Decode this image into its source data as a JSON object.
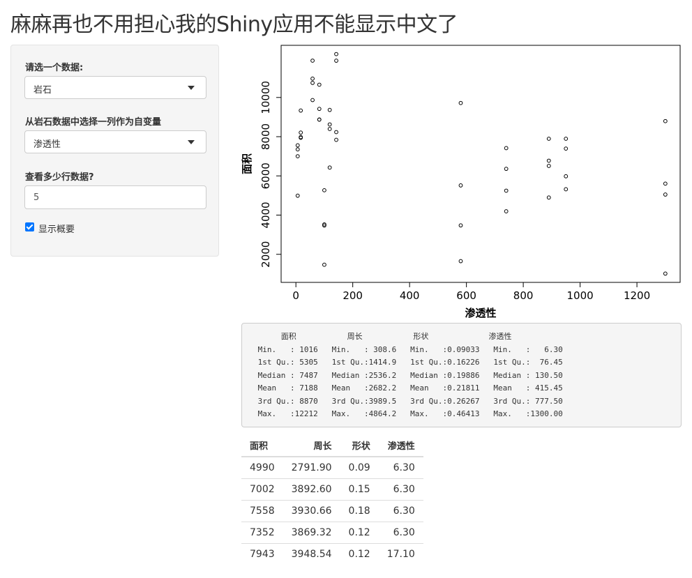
{
  "page_title": "麻麻再也不用担心我的Shiny应用不能显示中文了",
  "sidebar": {
    "dataset_label": "请选一个数据:",
    "dataset_value": "岩石",
    "variable_label": "从岩石数据中选择一列作为自变量",
    "variable_value": "渗透性",
    "rows_label": "查看多少行数据?",
    "rows_value": "5",
    "show_summary_label": "显示概要",
    "show_summary_checked": true
  },
  "chart_data": {
    "type": "scatter",
    "xlabel": "渗透性",
    "ylabel": "面积",
    "xlim": [
      0,
      1300
    ],
    "ylim": [
      1016,
      12212
    ],
    "xticks": [
      0,
      200,
      400,
      600,
      800,
      1000,
      1200
    ],
    "yticks": [
      2000,
      4000,
      6000,
      8000,
      10000
    ],
    "grid": false,
    "points": [
      [
        6.3,
        4990
      ],
      [
        6.3,
        7002
      ],
      [
        6.3,
        7558
      ],
      [
        6.3,
        7352
      ],
      [
        17.1,
        7943
      ],
      [
        17.1,
        7979
      ],
      [
        17.1,
        9333
      ],
      [
        17.1,
        8209
      ],
      [
        119,
        8393
      ],
      [
        119,
        6425
      ],
      [
        119,
        9364
      ],
      [
        119,
        8624
      ],
      [
        82.4,
        10651
      ],
      [
        82.4,
        8868
      ],
      [
        82.4,
        9417
      ],
      [
        82.4,
        8874
      ],
      [
        58.6,
        10962
      ],
      [
        58.6,
        10743
      ],
      [
        58.6,
        11878
      ],
      [
        58.6,
        9867
      ],
      [
        142,
        7838
      ],
      [
        142,
        11876
      ],
      [
        142,
        12212
      ],
      [
        142,
        8233
      ],
      [
        740,
        6360
      ],
      [
        740,
        4193
      ],
      [
        740,
        7416
      ],
      [
        740,
        5246
      ],
      [
        890,
        6509
      ],
      [
        890,
        4895
      ],
      [
        890,
        6775
      ],
      [
        890,
        7894
      ],
      [
        950,
        5980
      ],
      [
        950,
        5318
      ],
      [
        950,
        7392
      ],
      [
        950,
        7894
      ],
      [
        100,
        3469
      ],
      [
        100,
        1468
      ],
      [
        100,
        3524
      ],
      [
        100,
        5267
      ],
      [
        1300,
        5048
      ],
      [
        1300,
        1016
      ],
      [
        1300,
        5605
      ],
      [
        1300,
        8793
      ],
      [
        580,
        3475
      ],
      [
        580,
        1651
      ],
      [
        580,
        5514
      ],
      [
        580,
        9718
      ]
    ]
  },
  "summary": {
    "lines": [
      "      面积           周长           形状             渗透性",
      " Min.   : 1016   Min.   : 308.6   Min.   :0.09033   Min.   :   6.30",
      " 1st Qu.: 5305   1st Qu.:1414.9   1st Qu.:0.16226   1st Qu.:  76.45",
      " Median : 7487   Median :2536.2   Median :0.19886   Median : 130.50",
      " Mean   : 7188   Mean   :2682.2   Mean   :0.21811   Mean   : 415.45",
      " 3rd Qu.: 8870   3rd Qu.:3989.5   3rd Qu.:0.26267   3rd Qu.: 777.50",
      " Max.   :12212   Max.   :4864.2   Max.   :0.46413   Max.   :1300.00"
    ]
  },
  "table": {
    "columns": [
      "面积",
      "周长",
      "形状",
      "渗透性"
    ],
    "rows": [
      [
        "4990",
        "2791.90",
        "0.09",
        "6.30"
      ],
      [
        "7002",
        "3892.60",
        "0.15",
        "6.30"
      ],
      [
        "7558",
        "3930.66",
        "0.18",
        "6.30"
      ],
      [
        "7352",
        "3869.32",
        "0.12",
        "6.30"
      ],
      [
        "7943",
        "3948.54",
        "0.12",
        "17.10"
      ]
    ]
  }
}
